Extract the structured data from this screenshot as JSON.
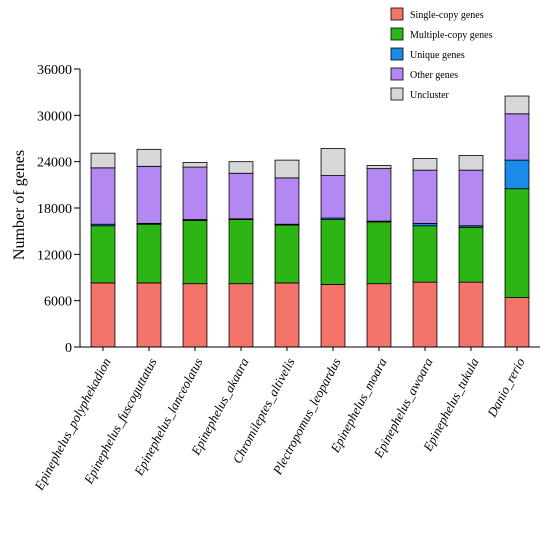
{
  "chart_data": {
    "type": "bar",
    "stacked": true,
    "title": "",
    "xlabel": "",
    "ylabel": "Number of genes",
    "ylim": [
      0,
      36000
    ],
    "yticks": [
      0,
      6000,
      12000,
      18000,
      24000,
      30000,
      36000
    ],
    "ytick_labels": [
      "0",
      "6000",
      "12000",
      "18000",
      "24000",
      "30000",
      "36000"
    ],
    "grid": false,
    "legend_position": "top-right",
    "categories": [
      "Epinephelus_polyphekadion",
      "Epinephelus_fuscoguttatus",
      "Epinephelus_lanceolatus",
      "Epinephelus_akaara",
      "Chromileptes_altivelis",
      "Plectropomus_leopardus",
      "Epinephelus_moara",
      "Epinephelus_awoara",
      "Epinephelus_tukula",
      "Danio_rerio"
    ],
    "series": [
      {
        "name": "Single-copy genes",
        "color": "#f4736b",
        "values": [
          8300,
          8300,
          8200,
          8200,
          8300,
          8100,
          8200,
          8400,
          8400,
          6400
        ]
      },
      {
        "name": "Multiple-copy genes",
        "color": "#2db515",
        "values": [
          7400,
          7600,
          8200,
          8300,
          7500,
          8400,
          8000,
          7300,
          7100,
          14100
        ]
      },
      {
        "name": "Unique genes",
        "color": "#1b8be9",
        "values": [
          200,
          100,
          100,
          100,
          100,
          200,
          100,
          300,
          200,
          3700
        ]
      },
      {
        "name": "Other genes",
        "color": "#b488f2",
        "values": [
          7300,
          7400,
          6800,
          5900,
          6000,
          5500,
          6800,
          6900,
          7200,
          6000
        ]
      },
      {
        "name": "Uncluster",
        "color": "#d7d7d7",
        "values": [
          1900,
          2200,
          600,
          1500,
          2300,
          3500,
          400,
          1500,
          1900,
          2300
        ]
      }
    ]
  }
}
